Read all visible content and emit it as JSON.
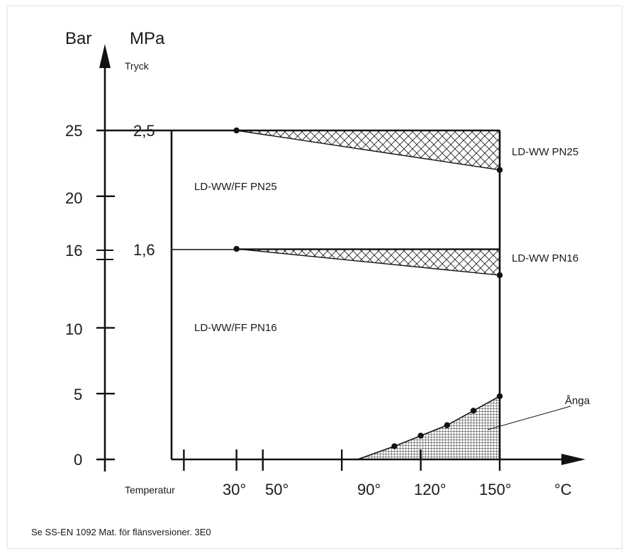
{
  "chart_data": {
    "type": "area",
    "left_axis_unit": "Bar",
    "right_axis_unit": "MPa",
    "y_axis_label": "Tryck",
    "x_axis_label": "Temperatur",
    "x_unit": "°C",
    "bar_ticks": [
      "0",
      "5",
      "10",
      "16",
      "20",
      "25"
    ],
    "mpa_ticks": [
      "1,6",
      "2,5"
    ],
    "x_ticks": [
      "30°",
      "50°",
      "90°",
      "120°",
      "150°"
    ],
    "ylim": [
      0,
      25
    ],
    "xlim": [
      0,
      150
    ],
    "regions": [
      {
        "name": "LD-WW/FF PN25",
        "max_pressure_bar": 25
      },
      {
        "name": "LD-WW/FF PN16",
        "max_pressure_bar": 16
      },
      {
        "name": "LD-WW PN25",
        "points": [
          [
            50,
            25
          ],
          [
            150,
            22
          ]
        ]
      },
      {
        "name": "LD-WW PN16",
        "points": [
          [
            50,
            16
          ],
          [
            150,
            14
          ]
        ]
      },
      {
        "name": "Ånga",
        "points": [
          [
            110,
            1
          ],
          [
            120,
            1.8
          ],
          [
            130,
            2.6
          ],
          [
            140,
            3.7
          ],
          [
            150,
            4.8
          ]
        ]
      }
    ],
    "steam_start_temp": 96,
    "grid": false
  },
  "footer": "Se SS-EN 1092 Mat. för flänsversioner. 3E0"
}
